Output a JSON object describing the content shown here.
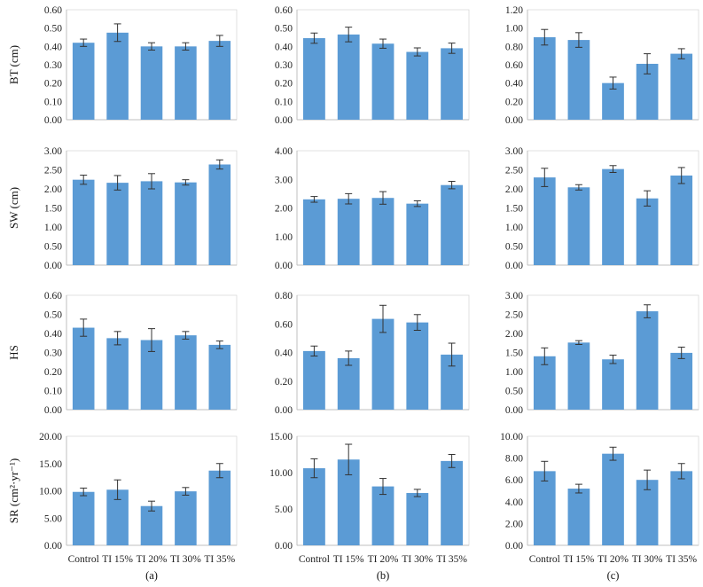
{
  "colors": {
    "bar": "#5b9bd5",
    "axis": "#bfbfbf",
    "error_bar": "#333333",
    "text": "#222222"
  },
  "row_labels": [
    "BT (cm)",
    "SW (cm)",
    "HS",
    "SR (cm²·yr⁻¹)"
  ],
  "column_labels": [
    "(a)",
    "(b)",
    "(c)"
  ],
  "chart_data": [
    {
      "type": "bar",
      "column_label": "(a)",
      "ylabel": "BT (cm)",
      "categories": [
        "Control",
        "TI 15%",
        "TI 20%",
        "TI 30%",
        "TI 35%"
      ],
      "values": [
        0.42,
        0.475,
        0.4,
        0.4,
        0.43
      ],
      "errors": [
        0.02,
        0.048,
        0.02,
        0.02,
        0.03
      ],
      "ylim": [
        0,
        0.6
      ],
      "yticks": [
        "0.00",
        "0.10",
        "0.20",
        "0.30",
        "0.40",
        "0.50",
        "0.60"
      ],
      "grid": false,
      "legend": "none"
    },
    {
      "type": "bar",
      "column_label": "(b)",
      "ylabel": "",
      "categories": [
        "Control",
        "TI 15%",
        "TI 20%",
        "TI 30%",
        "TI 35%"
      ],
      "values": [
        0.445,
        0.465,
        0.415,
        0.37,
        0.39
      ],
      "errors": [
        0.028,
        0.04,
        0.025,
        0.022,
        0.028
      ],
      "ylim": [
        0,
        0.6
      ],
      "yticks": [
        "0.00",
        "0.10",
        "0.20",
        "0.30",
        "0.40",
        "0.50",
        "0.60"
      ],
      "grid": false,
      "legend": "none"
    },
    {
      "type": "bar",
      "column_label": "(c)",
      "ylabel": "",
      "categories": [
        "Control",
        "TI 15%",
        "TI 20%",
        "TI 30%",
        "TI 35%"
      ],
      "values": [
        0.9,
        0.87,
        0.4,
        0.61,
        0.72
      ],
      "errors": [
        0.085,
        0.08,
        0.065,
        0.11,
        0.055
      ],
      "ylim": [
        0,
        1.2
      ],
      "yticks": [
        "0.00",
        "0.20",
        "0.40",
        "0.60",
        "0.80",
        "1.00",
        "1.20"
      ],
      "grid": false,
      "legend": "none"
    },
    {
      "type": "bar",
      "column_label": "(a)",
      "ylabel": "SW (cm)",
      "categories": [
        "Control",
        "TI 15%",
        "TI 20%",
        "TI 30%",
        "TI 35%"
      ],
      "values": [
        2.24,
        2.16,
        2.2,
        2.17,
        2.64
      ],
      "errors": [
        0.12,
        0.19,
        0.2,
        0.07,
        0.12
      ],
      "ylim": [
        0,
        3.0
      ],
      "yticks": [
        "0.00",
        "0.50",
        "1.00",
        "1.50",
        "2.00",
        "2.50",
        "3.00"
      ],
      "grid": false,
      "legend": "none"
    },
    {
      "type": "bar",
      "column_label": "(b)",
      "ylabel": "",
      "categories": [
        "Control",
        "TI 15%",
        "TI 20%",
        "TI 30%",
        "TI 35%"
      ],
      "values": [
        2.3,
        2.32,
        2.35,
        2.15,
        2.8
      ],
      "errors": [
        0.1,
        0.18,
        0.22,
        0.1,
        0.13
      ],
      "ylim": [
        0,
        4.0
      ],
      "yticks": [
        "0.00",
        "1.00",
        "2.00",
        "3.00",
        "4.00"
      ],
      "grid": false,
      "legend": "none"
    },
    {
      "type": "bar",
      "column_label": "(c)",
      "ylabel": "",
      "categories": [
        "Control",
        "TI 15%",
        "TI 20%",
        "TI 30%",
        "TI 35%"
      ],
      "values": [
        2.3,
        2.04,
        2.52,
        1.75,
        2.35
      ],
      "errors": [
        0.24,
        0.07,
        0.09,
        0.2,
        0.21
      ],
      "ylim": [
        0,
        3.0
      ],
      "yticks": [
        "0.00",
        "0.50",
        "1.00",
        "1.50",
        "2.00",
        "2.50",
        "3.00"
      ],
      "grid": false,
      "legend": "none"
    },
    {
      "type": "bar",
      "column_label": "(a)",
      "ylabel": "HS",
      "categories": [
        "Control",
        "TI 15%",
        "TI 20%",
        "TI 30%",
        "TI 35%"
      ],
      "values": [
        0.43,
        0.375,
        0.365,
        0.39,
        0.34
      ],
      "errors": [
        0.045,
        0.035,
        0.06,
        0.02,
        0.02
      ],
      "ylim": [
        0,
        0.6
      ],
      "yticks": [
        "0.00",
        "0.10",
        "0.20",
        "0.30",
        "0.40",
        "0.50",
        "0.60"
      ],
      "grid": false,
      "legend": "none"
    },
    {
      "type": "bar",
      "column_label": "(b)",
      "ylabel": "",
      "categories": [
        "Control",
        "TI 15%",
        "TI 20%",
        "TI 30%",
        "TI 35%"
      ],
      "values": [
        0.41,
        0.36,
        0.635,
        0.61,
        0.385
      ],
      "errors": [
        0.035,
        0.05,
        0.095,
        0.055,
        0.08
      ],
      "ylim": [
        0,
        0.8
      ],
      "yticks": [
        "0.00",
        "0.20",
        "0.40",
        "0.60",
        "0.80"
      ],
      "grid": false,
      "legend": "none"
    },
    {
      "type": "bar",
      "column_label": "(c)",
      "ylabel": "",
      "categories": [
        "Control",
        "TI 15%",
        "TI 20%",
        "TI 30%",
        "TI 35%"
      ],
      "values": [
        1.4,
        1.76,
        1.32,
        2.58,
        1.49
      ],
      "errors": [
        0.22,
        0.05,
        0.11,
        0.17,
        0.15
      ],
      "ylim": [
        0,
        3.0
      ],
      "yticks": [
        "0.00",
        "0.50",
        "1.00",
        "1.50",
        "2.00",
        "2.50",
        "3.00"
      ],
      "grid": false,
      "legend": "none"
    },
    {
      "type": "bar",
      "column_label": "(a)",
      "ylabel": "SR (cm²·yr⁻¹)",
      "categories": [
        "Control",
        "TI 15%",
        "TI 20%",
        "TI 30%",
        "TI 35%"
      ],
      "values": [
        9.8,
        10.2,
        7.2,
        9.9,
        13.7
      ],
      "errors": [
        0.7,
        1.8,
        0.9,
        0.7,
        1.3
      ],
      "ylim": [
        0,
        20
      ],
      "yticks": [
        "0.00",
        "5.00",
        "10.00",
        "15.00",
        "20.00"
      ],
      "grid": false,
      "legend": "none"
    },
    {
      "type": "bar",
      "column_label": "(b)",
      "ylabel": "",
      "categories": [
        "Control",
        "TI 15%",
        "TI 20%",
        "TI 30%",
        "TI 35%"
      ],
      "values": [
        10.6,
        11.8,
        8.1,
        7.2,
        11.6
      ],
      "errors": [
        1.3,
        2.1,
        1.1,
        0.5,
        0.9
      ],
      "ylim": [
        0,
        15
      ],
      "yticks": [
        "0.00",
        "5.00",
        "10.00",
        "15.00"
      ],
      "grid": false,
      "legend": "none"
    },
    {
      "type": "bar",
      "column_label": "(c)",
      "ylabel": "",
      "categories": [
        "Control",
        "TI 15%",
        "TI 20%",
        "TI 30%",
        "TI 35%"
      ],
      "values": [
        6.8,
        5.2,
        8.4,
        6.0,
        6.8
      ],
      "errors": [
        0.9,
        0.4,
        0.6,
        0.9,
        0.7
      ],
      "ylim": [
        0,
        10
      ],
      "yticks": [
        "0.00",
        "2.00",
        "4.00",
        "6.00",
        "8.00",
        "10.00"
      ],
      "grid": false,
      "legend": "none"
    }
  ]
}
